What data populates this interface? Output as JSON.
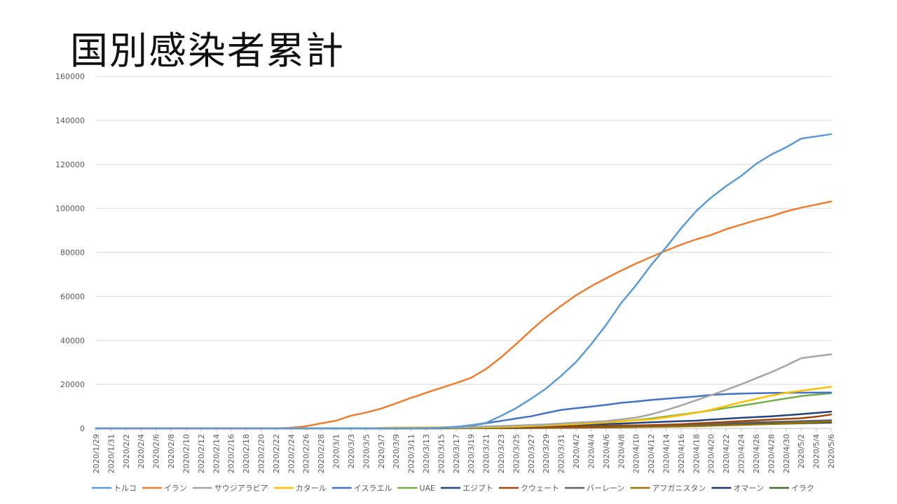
{
  "slide": {
    "title": "国別感染者累計"
  },
  "chart_data": {
    "type": "line",
    "title": "国別感染者累計",
    "xlabel": "",
    "ylabel": "",
    "ylim": [
      0,
      160000
    ],
    "yticks": [
      0,
      20000,
      40000,
      60000,
      80000,
      100000,
      120000,
      140000,
      160000
    ],
    "grid": true,
    "legend_position": "bottom",
    "x_start": "2020/1/29",
    "x_end": "2020/5/7",
    "x_tick_labels": [
      "2020/1/29",
      "2020/1/31",
      "2020/2/2",
      "2020/2/4",
      "2020/2/6",
      "2020/2/8",
      "2020/2/10",
      "2020/2/12",
      "2020/2/14",
      "2020/2/16",
      "2020/2/18",
      "2020/2/20",
      "2020/2/22",
      "2020/2/24",
      "2020/2/26",
      "2020/2/28",
      "2020/3/1",
      "2020/3/3",
      "2020/3/5",
      "2020/3/7",
      "2020/3/9",
      "2020/3/11",
      "2020/3/13",
      "2020/3/15",
      "2020/3/17",
      "2020/3/19",
      "2020/3/21",
      "2020/3/23",
      "2020/3/25",
      "2020/3/27",
      "2020/3/29",
      "2020/3/31",
      "2020/4/2",
      "2020/4/4",
      "2020/4/6",
      "2020/4/8",
      "2020/4/10",
      "2020/4/12",
      "2020/4/14",
      "2020/4/16",
      "2020/4/18",
      "2020/4/20",
      "2020/4/22",
      "2020/4/24",
      "2020/4/26",
      "2020/4/28",
      "2020/4/30",
      "2020/5/2",
      "2020/5/4",
      "2020/5/6"
    ],
    "series": [
      {
        "name": "トルコ",
        "color": "#5B9BD5",
        "points": [
          [
            0,
            0
          ],
          [
            40,
            0
          ],
          [
            44,
            50
          ],
          [
            46,
            200
          ],
          [
            48,
            700
          ],
          [
            50,
            1500
          ],
          [
            52,
            2500
          ],
          [
            54,
            5700
          ],
          [
            56,
            9200
          ],
          [
            58,
            13500
          ],
          [
            60,
            18100
          ],
          [
            62,
            23900
          ],
          [
            64,
            30200
          ],
          [
            66,
            38200
          ],
          [
            68,
            47000
          ],
          [
            70,
            56900
          ],
          [
            72,
            65100
          ],
          [
            74,
            74200
          ],
          [
            76,
            82300
          ],
          [
            78,
            90900
          ],
          [
            80,
            98700
          ],
          [
            82,
            104900
          ],
          [
            84,
            110100
          ],
          [
            86,
            114700
          ],
          [
            88,
            120200
          ],
          [
            90,
            124400
          ],
          [
            92,
            127700
          ],
          [
            94,
            131700
          ],
          [
            98,
            133700
          ]
        ]
      },
      {
        "name": "イラン",
        "color": "#ED7D31",
        "points": [
          [
            0,
            0
          ],
          [
            21,
            0
          ],
          [
            22,
            2
          ],
          [
            24,
            43
          ],
          [
            26,
            300
          ],
          [
            28,
            1000
          ],
          [
            30,
            2300
          ],
          [
            32,
            3500
          ],
          [
            34,
            5800
          ],
          [
            36,
            7200
          ],
          [
            38,
            9000
          ],
          [
            40,
            11400
          ],
          [
            42,
            13900
          ],
          [
            43,
            14990
          ],
          [
            44,
            16200
          ],
          [
            46,
            18400
          ],
          [
            48,
            20600
          ],
          [
            50,
            23000
          ],
          [
            52,
            27000
          ],
          [
            54,
            32300
          ],
          [
            56,
            38300
          ],
          [
            58,
            44600
          ],
          [
            60,
            50500
          ],
          [
            62,
            55700
          ],
          [
            64,
            60500
          ],
          [
            66,
            64600
          ],
          [
            68,
            68200
          ],
          [
            70,
            71700
          ],
          [
            72,
            74900
          ],
          [
            74,
            77900
          ],
          [
            76,
            80800
          ],
          [
            78,
            83500
          ],
          [
            80,
            85900
          ],
          [
            82,
            87900
          ],
          [
            84,
            90500
          ],
          [
            86,
            92600
          ],
          [
            88,
            94600
          ],
          [
            90,
            96400
          ],
          [
            92,
            98600
          ],
          [
            94,
            100300
          ],
          [
            98,
            103100
          ]
        ]
      },
      {
        "name": "サウジアラビア",
        "color": "#A5A5A5",
        "points": [
          [
            0,
            0
          ],
          [
            35,
            0
          ],
          [
            40,
            100
          ],
          [
            44,
            150
          ],
          [
            48,
            400
          ],
          [
            52,
            900
          ],
          [
            56,
            1300
          ],
          [
            60,
            1800
          ],
          [
            64,
            2600
          ],
          [
            68,
            3300
          ],
          [
            72,
            4900
          ],
          [
            74,
            6400
          ],
          [
            76,
            8300
          ],
          [
            78,
            10400
          ],
          [
            80,
            12800
          ],
          [
            82,
            15100
          ],
          [
            84,
            17500
          ],
          [
            86,
            20000
          ],
          [
            88,
            22800
          ],
          [
            90,
            25500
          ],
          [
            92,
            28600
          ],
          [
            94,
            31900
          ],
          [
            98,
            33700
          ]
        ]
      },
      {
        "name": "カタール",
        "color": "#FFC000",
        "points": [
          [
            0,
            0
          ],
          [
            34,
            0
          ],
          [
            36,
            24
          ],
          [
            40,
            400
          ],
          [
            44,
            450
          ],
          [
            48,
            500
          ],
          [
            52,
            600
          ],
          [
            56,
            900
          ],
          [
            60,
            1300
          ],
          [
            64,
            1900
          ],
          [
            68,
            2700
          ],
          [
            72,
            3700
          ],
          [
            74,
            4100
          ],
          [
            76,
            5000
          ],
          [
            78,
            6000
          ],
          [
            80,
            7100
          ],
          [
            82,
            8500
          ],
          [
            84,
            10200
          ],
          [
            86,
            11900
          ],
          [
            88,
            13400
          ],
          [
            90,
            14900
          ],
          [
            92,
            16200
          ],
          [
            94,
            17100
          ],
          [
            98,
            18900
          ]
        ]
      },
      {
        "name": "イスラエル",
        "color": "#4472C4",
        "points": [
          [
            0,
            0
          ],
          [
            38,
            0
          ],
          [
            40,
            100
          ],
          [
            44,
            200
          ],
          [
            48,
            700
          ],
          [
            50,
            1200
          ],
          [
            52,
            2400
          ],
          [
            54,
            3400
          ],
          [
            56,
            4500
          ],
          [
            58,
            5500
          ],
          [
            60,
            7000
          ],
          [
            62,
            8400
          ],
          [
            64,
            9200
          ],
          [
            66,
            9900
          ],
          [
            68,
            10700
          ],
          [
            70,
            11600
          ],
          [
            72,
            12200
          ],
          [
            74,
            12900
          ],
          [
            76,
            13500
          ],
          [
            78,
            14000
          ],
          [
            80,
            14500
          ],
          [
            82,
            15200
          ],
          [
            84,
            15600
          ],
          [
            86,
            15800
          ],
          [
            88,
            16000
          ],
          [
            90,
            16100
          ],
          [
            92,
            16200
          ],
          [
            98,
            16300
          ]
        ]
      },
      {
        "name": "UAE",
        "color": "#70AD47",
        "points": [
          [
            0,
            0
          ],
          [
            34,
            0
          ],
          [
            36,
            20
          ],
          [
            40,
            100
          ],
          [
            44,
            150
          ],
          [
            48,
            250
          ],
          [
            52,
            400
          ],
          [
            56,
            700
          ],
          [
            60,
            1300
          ],
          [
            64,
            2000
          ],
          [
            68,
            2700
          ],
          [
            72,
            3800
          ],
          [
            74,
            4500
          ],
          [
            76,
            5400
          ],
          [
            78,
            6300
          ],
          [
            80,
            7200
          ],
          [
            82,
            8200
          ],
          [
            84,
            9300
          ],
          [
            86,
            10300
          ],
          [
            88,
            11400
          ],
          [
            90,
            12500
          ],
          [
            92,
            13600
          ],
          [
            94,
            14700
          ],
          [
            98,
            16000
          ]
        ]
      },
      {
        "name": "エジプト",
        "color": "#264478",
        "points": [
          [
            0,
            0
          ],
          [
            36,
            0
          ],
          [
            38,
            10
          ],
          [
            42,
            60
          ],
          [
            46,
            200
          ],
          [
            50,
            400
          ],
          [
            54,
            600
          ],
          [
            58,
            900
          ],
          [
            62,
            1300
          ],
          [
            66,
            1800
          ],
          [
            70,
            2200
          ],
          [
            74,
            2800
          ],
          [
            78,
            3300
          ],
          [
            80,
            3500
          ],
          [
            82,
            4000
          ],
          [
            86,
            4800
          ],
          [
            90,
            5500
          ],
          [
            94,
            6500
          ],
          [
            98,
            7600
          ]
        ]
      },
      {
        "name": "クウェート",
        "color": "#9E480E",
        "points": [
          [
            0,
            0
          ],
          [
            40,
            0
          ],
          [
            42,
            50
          ],
          [
            46,
            100
          ],
          [
            50,
            200
          ],
          [
            54,
            300
          ],
          [
            58,
            400
          ],
          [
            62,
            600
          ],
          [
            66,
            900
          ],
          [
            70,
            1200
          ],
          [
            74,
            1500
          ],
          [
            78,
            1900
          ],
          [
            82,
            2600
          ],
          [
            86,
            3300
          ],
          [
            90,
            4000
          ],
          [
            94,
            4600
          ],
          [
            96,
            5300
          ],
          [
            98,
            6300
          ]
        ]
      },
      {
        "name": "バーレーン",
        "color": "#636363",
        "points": [
          [
            0,
            0
          ],
          [
            38,
            0
          ],
          [
            40,
            30
          ],
          [
            44,
            100
          ],
          [
            48,
            200
          ],
          [
            52,
            300
          ],
          [
            56,
            450
          ],
          [
            60,
            600
          ],
          [
            64,
            700
          ],
          [
            68,
            900
          ],
          [
            72,
            1100
          ],
          [
            76,
            1500
          ],
          [
            80,
            1800
          ],
          [
            84,
            2300
          ],
          [
            88,
            2800
          ],
          [
            92,
            3100
          ],
          [
            96,
            3500
          ],
          [
            98,
            3700
          ]
        ]
      },
      {
        "name": "アフガニスタン",
        "color": "#997300",
        "points": [
          [
            0,
            0
          ],
          [
            44,
            0
          ],
          [
            46,
            20
          ],
          [
            50,
            60
          ],
          [
            54,
            100
          ],
          [
            58,
            200
          ],
          [
            62,
            300
          ],
          [
            66,
            400
          ],
          [
            70,
            500
          ],
          [
            74,
            700
          ],
          [
            78,
            900
          ],
          [
            82,
            1200
          ],
          [
            86,
            1600
          ],
          [
            90,
            2000
          ],
          [
            94,
            2500
          ],
          [
            98,
            3100
          ]
        ]
      },
      {
        "name": "オマーン",
        "color": "#203864",
        "points": [
          [
            0,
            0
          ],
          [
            44,
            0
          ],
          [
            46,
            20
          ],
          [
            50,
            50
          ],
          [
            54,
            100
          ],
          [
            58,
            170
          ],
          [
            62,
            250
          ],
          [
            66,
            350
          ],
          [
            70,
            500
          ],
          [
            74,
            900
          ],
          [
            78,
            1300
          ],
          [
            82,
            1700
          ],
          [
            86,
            2000
          ],
          [
            90,
            2300
          ],
          [
            94,
            2500
          ],
          [
            98,
            2700
          ]
        ]
      },
      {
        "name": "イラク",
        "color": "#43682B",
        "points": [
          [
            0,
            0
          ],
          [
            40,
            0
          ],
          [
            42,
            50
          ],
          [
            46,
            150
          ],
          [
            50,
            250
          ],
          [
            54,
            450
          ],
          [
            58,
            700
          ],
          [
            62,
            900
          ],
          [
            66,
            1100
          ],
          [
            70,
            1300
          ],
          [
            74,
            1400
          ],
          [
            78,
            1500
          ],
          [
            82,
            1600
          ],
          [
            86,
            1800
          ],
          [
            90,
            2000
          ],
          [
            94,
            2300
          ],
          [
            98,
            2600
          ]
        ]
      }
    ]
  }
}
